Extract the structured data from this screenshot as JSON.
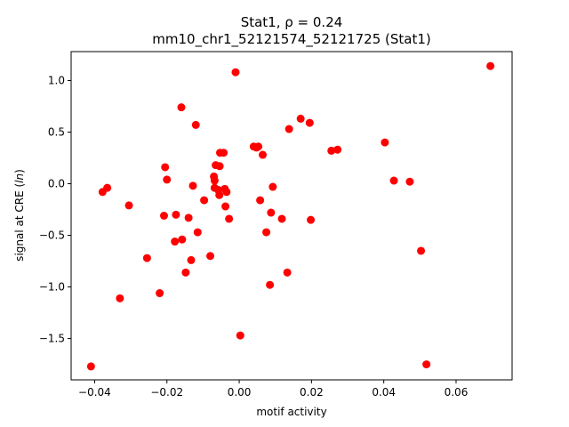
{
  "chart_data": {
    "type": "scatter",
    "title_line1": "Stat1, ρ = 0.24",
    "title_line2": "mm10_chr1_52121574_52121725 (Stat1)",
    "xlabel": "motif activity",
    "ylabel": "signal at CRE (ln)",
    "xlim": [
      -0.0465,
      0.0755
    ],
    "ylim": [
      -1.9,
      1.28
    ],
    "xticks": [
      {
        "value": -0.04,
        "label": "−0.04"
      },
      {
        "value": -0.02,
        "label": "−0.02"
      },
      {
        "value": 0.0,
        "label": "0.00"
      },
      {
        "value": 0.02,
        "label": "0.02"
      },
      {
        "value": 0.04,
        "label": "0.04"
      },
      {
        "value": 0.06,
        "label": "0.06"
      }
    ],
    "yticks": [
      {
        "value": -1.5,
        "label": "−1.5"
      },
      {
        "value": -1.0,
        "label": "−1.0"
      },
      {
        "value": -0.5,
        "label": "−0.5"
      },
      {
        "value": 0.0,
        "label": "0.0"
      },
      {
        "value": 0.5,
        "label": "0.5"
      },
      {
        "value": 1.0,
        "label": "1.0"
      }
    ],
    "marker_color": "#ff0000",
    "grid": false,
    "points": [
      {
        "x": -0.041,
        "y": -1.77
      },
      {
        "x": -0.0378,
        "y": -0.08
      },
      {
        "x": -0.0365,
        "y": -0.04
      },
      {
        "x": -0.033,
        "y": -1.11
      },
      {
        "x": -0.0305,
        "y": -0.21
      },
      {
        "x": -0.0255,
        "y": -0.72
      },
      {
        "x": -0.022,
        "y": -1.06
      },
      {
        "x": -0.0208,
        "y": -0.31
      },
      {
        "x": -0.0205,
        "y": 0.16
      },
      {
        "x": -0.02,
        "y": 0.04
      },
      {
        "x": -0.0178,
        "y": -0.56
      },
      {
        "x": -0.0175,
        "y": -0.3
      },
      {
        "x": -0.016,
        "y": 0.74
      },
      {
        "x": -0.0158,
        "y": -0.54
      },
      {
        "x": -0.0148,
        "y": -0.86
      },
      {
        "x": -0.014,
        "y": -0.33
      },
      {
        "x": -0.0133,
        "y": -0.74
      },
      {
        "x": -0.0128,
        "y": -0.02
      },
      {
        "x": -0.012,
        "y": 0.57
      },
      {
        "x": -0.0115,
        "y": -0.47
      },
      {
        "x": -0.0097,
        "y": -0.16
      },
      {
        "x": -0.008,
        "y": -0.7
      },
      {
        "x": -0.007,
        "y": 0.07
      },
      {
        "x": -0.0068,
        "y": 0.03
      },
      {
        "x": -0.0068,
        "y": -0.04
      },
      {
        "x": -0.0065,
        "y": 0.18
      },
      {
        "x": -0.0058,
        "y": -0.06
      },
      {
        "x": -0.0055,
        "y": -0.11
      },
      {
        "x": -0.0054,
        "y": 0.17
      },
      {
        "x": -0.0053,
        "y": 0.3
      },
      {
        "x": -0.0043,
        "y": 0.3
      },
      {
        "x": -0.004,
        "y": -0.05
      },
      {
        "x": -0.0038,
        "y": -0.22
      },
      {
        "x": -0.0035,
        "y": -0.08
      },
      {
        "x": -0.0028,
        "y": -0.34
      },
      {
        "x": -0.001,
        "y": 1.08
      },
      {
        "x": 0.0003,
        "y": -1.47
      },
      {
        "x": 0.004,
        "y": 0.36
      },
      {
        "x": 0.0048,
        "y": 0.35
      },
      {
        "x": 0.0053,
        "y": 0.36
      },
      {
        "x": 0.0058,
        "y": -0.16
      },
      {
        "x": 0.0065,
        "y": 0.28
      },
      {
        "x": 0.0075,
        "y": -0.47
      },
      {
        "x": 0.0085,
        "y": -0.98
      },
      {
        "x": 0.0088,
        "y": -0.28
      },
      {
        "x": 0.0093,
        "y": -0.03
      },
      {
        "x": 0.0118,
        "y": -0.34
      },
      {
        "x": 0.0133,
        "y": -0.86
      },
      {
        "x": 0.0138,
        "y": 0.53
      },
      {
        "x": 0.017,
        "y": 0.63
      },
      {
        "x": 0.0195,
        "y": 0.59
      },
      {
        "x": 0.0198,
        "y": -0.35
      },
      {
        "x": 0.0255,
        "y": 0.32
      },
      {
        "x": 0.0272,
        "y": 0.33
      },
      {
        "x": 0.0403,
        "y": 0.4
      },
      {
        "x": 0.0428,
        "y": 0.03
      },
      {
        "x": 0.0472,
        "y": 0.02
      },
      {
        "x": 0.0503,
        "y": -0.65
      },
      {
        "x": 0.0518,
        "y": -1.75
      },
      {
        "x": 0.0695,
        "y": 1.14
      }
    ]
  }
}
